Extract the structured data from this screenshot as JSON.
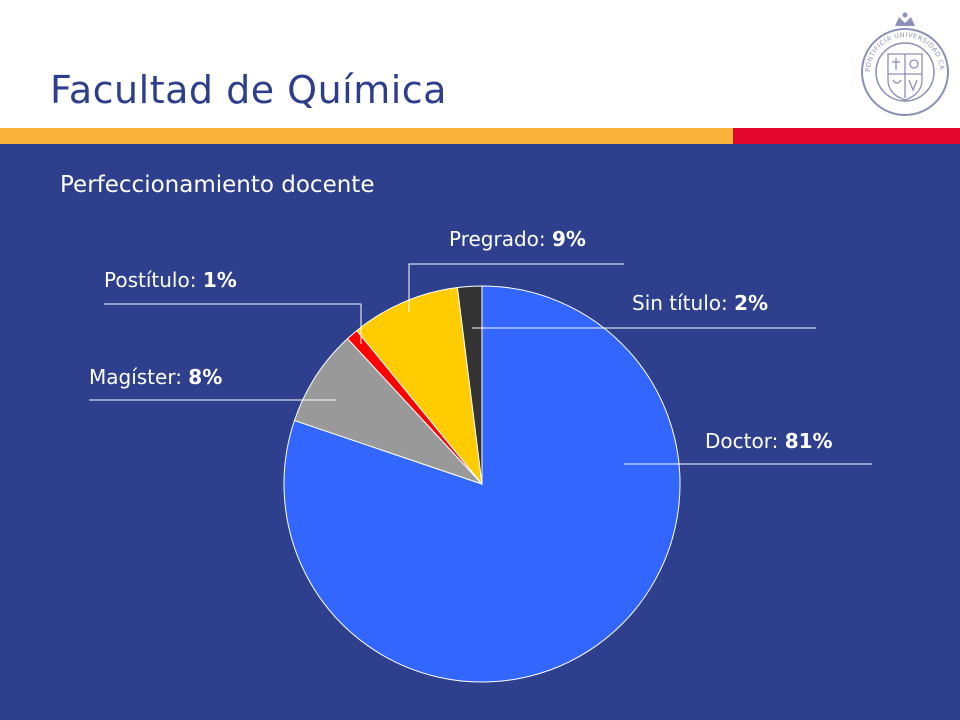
{
  "header": {
    "title": "Facultad de Química",
    "logo_text": "PONTIFICIA UNIVERSIDAD CATÓLICA DE CHILE"
  },
  "colors": {
    "brand_blue": "#2e3f8e",
    "title_blue": "#2d3e8c",
    "stripe_orange": "#fbb33b",
    "stripe_red": "#e3062d"
  },
  "chart_data": {
    "type": "pie",
    "title": "Perfeccionamiento docente",
    "slices": [
      {
        "label": "Doctor",
        "value": 81,
        "display": "81%",
        "color": "#3366ff"
      },
      {
        "label": "Magíster",
        "value": 8,
        "display": "8%",
        "color": "#999999"
      },
      {
        "label": "Postítulo",
        "value": 1,
        "display": "1%",
        "color": "#ff0000"
      },
      {
        "label": "Pregrado",
        "value": 9,
        "display": "9%",
        "color": "#ffcc00"
      },
      {
        "label": "Sin título",
        "value": 2,
        "display": "2%",
        "color": "#333333"
      }
    ],
    "legend": "none",
    "data_labels": "outside with leader lines"
  }
}
